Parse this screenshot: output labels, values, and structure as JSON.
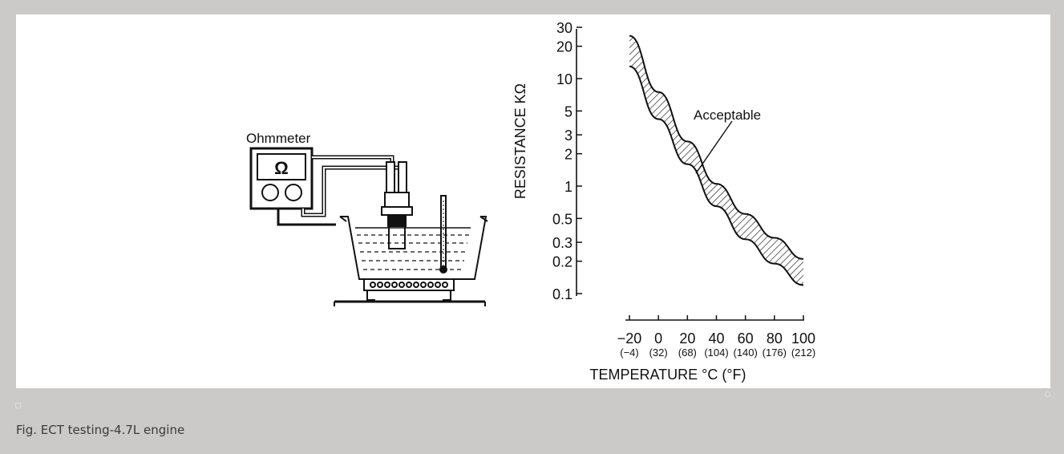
{
  "figure": {
    "instrument_label": "Ohmmeter",
    "instrument_symbol": "Ω",
    "curve_annotation": "Acceptable"
  },
  "chart_data": {
    "type": "area",
    "title": "",
    "ylabel": "RESISTANCE KΩ",
    "xlabel": "TEMPERATURE °C (°F)",
    "yscale": "log",
    "ylim": [
      0.1,
      30
    ],
    "xlim": [
      -20,
      100
    ],
    "y_ticks": [
      "30",
      "20",
      "10",
      "5",
      "3",
      "2",
      "1",
      "0.5",
      "0.3",
      "0.2",
      "0.1"
    ],
    "x_ticks": [
      {
        "c": "−20",
        "f": "(−4)"
      },
      {
        "c": "0",
        "f": "(32)"
      },
      {
        "c": "20",
        "f": "(68)"
      },
      {
        "c": "40",
        "f": "(104)"
      },
      {
        "c": "60",
        "f": "(140)"
      },
      {
        "c": "80",
        "f": "(176)"
      },
      {
        "c": "100",
        "f": "(212)"
      }
    ],
    "series": [
      {
        "x": [
          -20,
          0,
          20,
          40,
          60,
          80,
          100
        ],
        "y": [
          25,
          7.5,
          2.6,
          1.05,
          0.55,
          0.33,
          0.21
        ]
      },
      {
        "x": [
          -20,
          0,
          20,
          40,
          60,
          80,
          100
        ],
        "y": [
          13,
          4.2,
          1.6,
          0.65,
          0.32,
          0.19,
          0.12
        ]
      }
    ],
    "band_label": "Acceptable"
  },
  "caption": "Fig. ECT testing-4.7L engine"
}
